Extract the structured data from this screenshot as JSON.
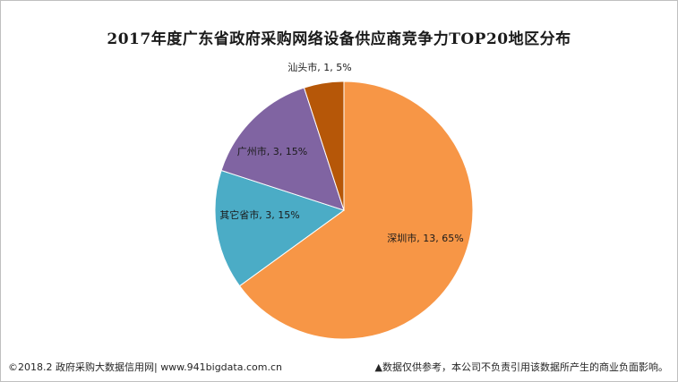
{
  "chart_data": {
    "type": "pie",
    "title": "2017年度广东省政府采购网络设备供应商竞争力TOP20地区分布",
    "slices": [
      {
        "label": "深圳市, 13, 65%",
        "name": "深圳市",
        "value": 13,
        "percent": 65,
        "color": "#F79646"
      },
      {
        "label": "其它省市, 3, 15%",
        "name": "其它省市",
        "value": 3,
        "percent": 15,
        "color": "#4BACC6"
      },
      {
        "label": "广州市, 3, 15%",
        "name": "广州市",
        "value": 3,
        "percent": 15,
        "color": "#8064A2"
      },
      {
        "label": "汕头市, 1, 5%",
        "name": "汕头市",
        "value": 1,
        "percent": 5,
        "color": "#B65708"
      }
    ],
    "start_angle_deg": 0,
    "direction": "clockwise"
  },
  "footer": {
    "left": "©2018.2 政府采购大数据信用网| www.941bigdata.com.cn",
    "right": "▲数据仅供参考，本公司不负责引用该数据所产生的商业负面影响。"
  }
}
